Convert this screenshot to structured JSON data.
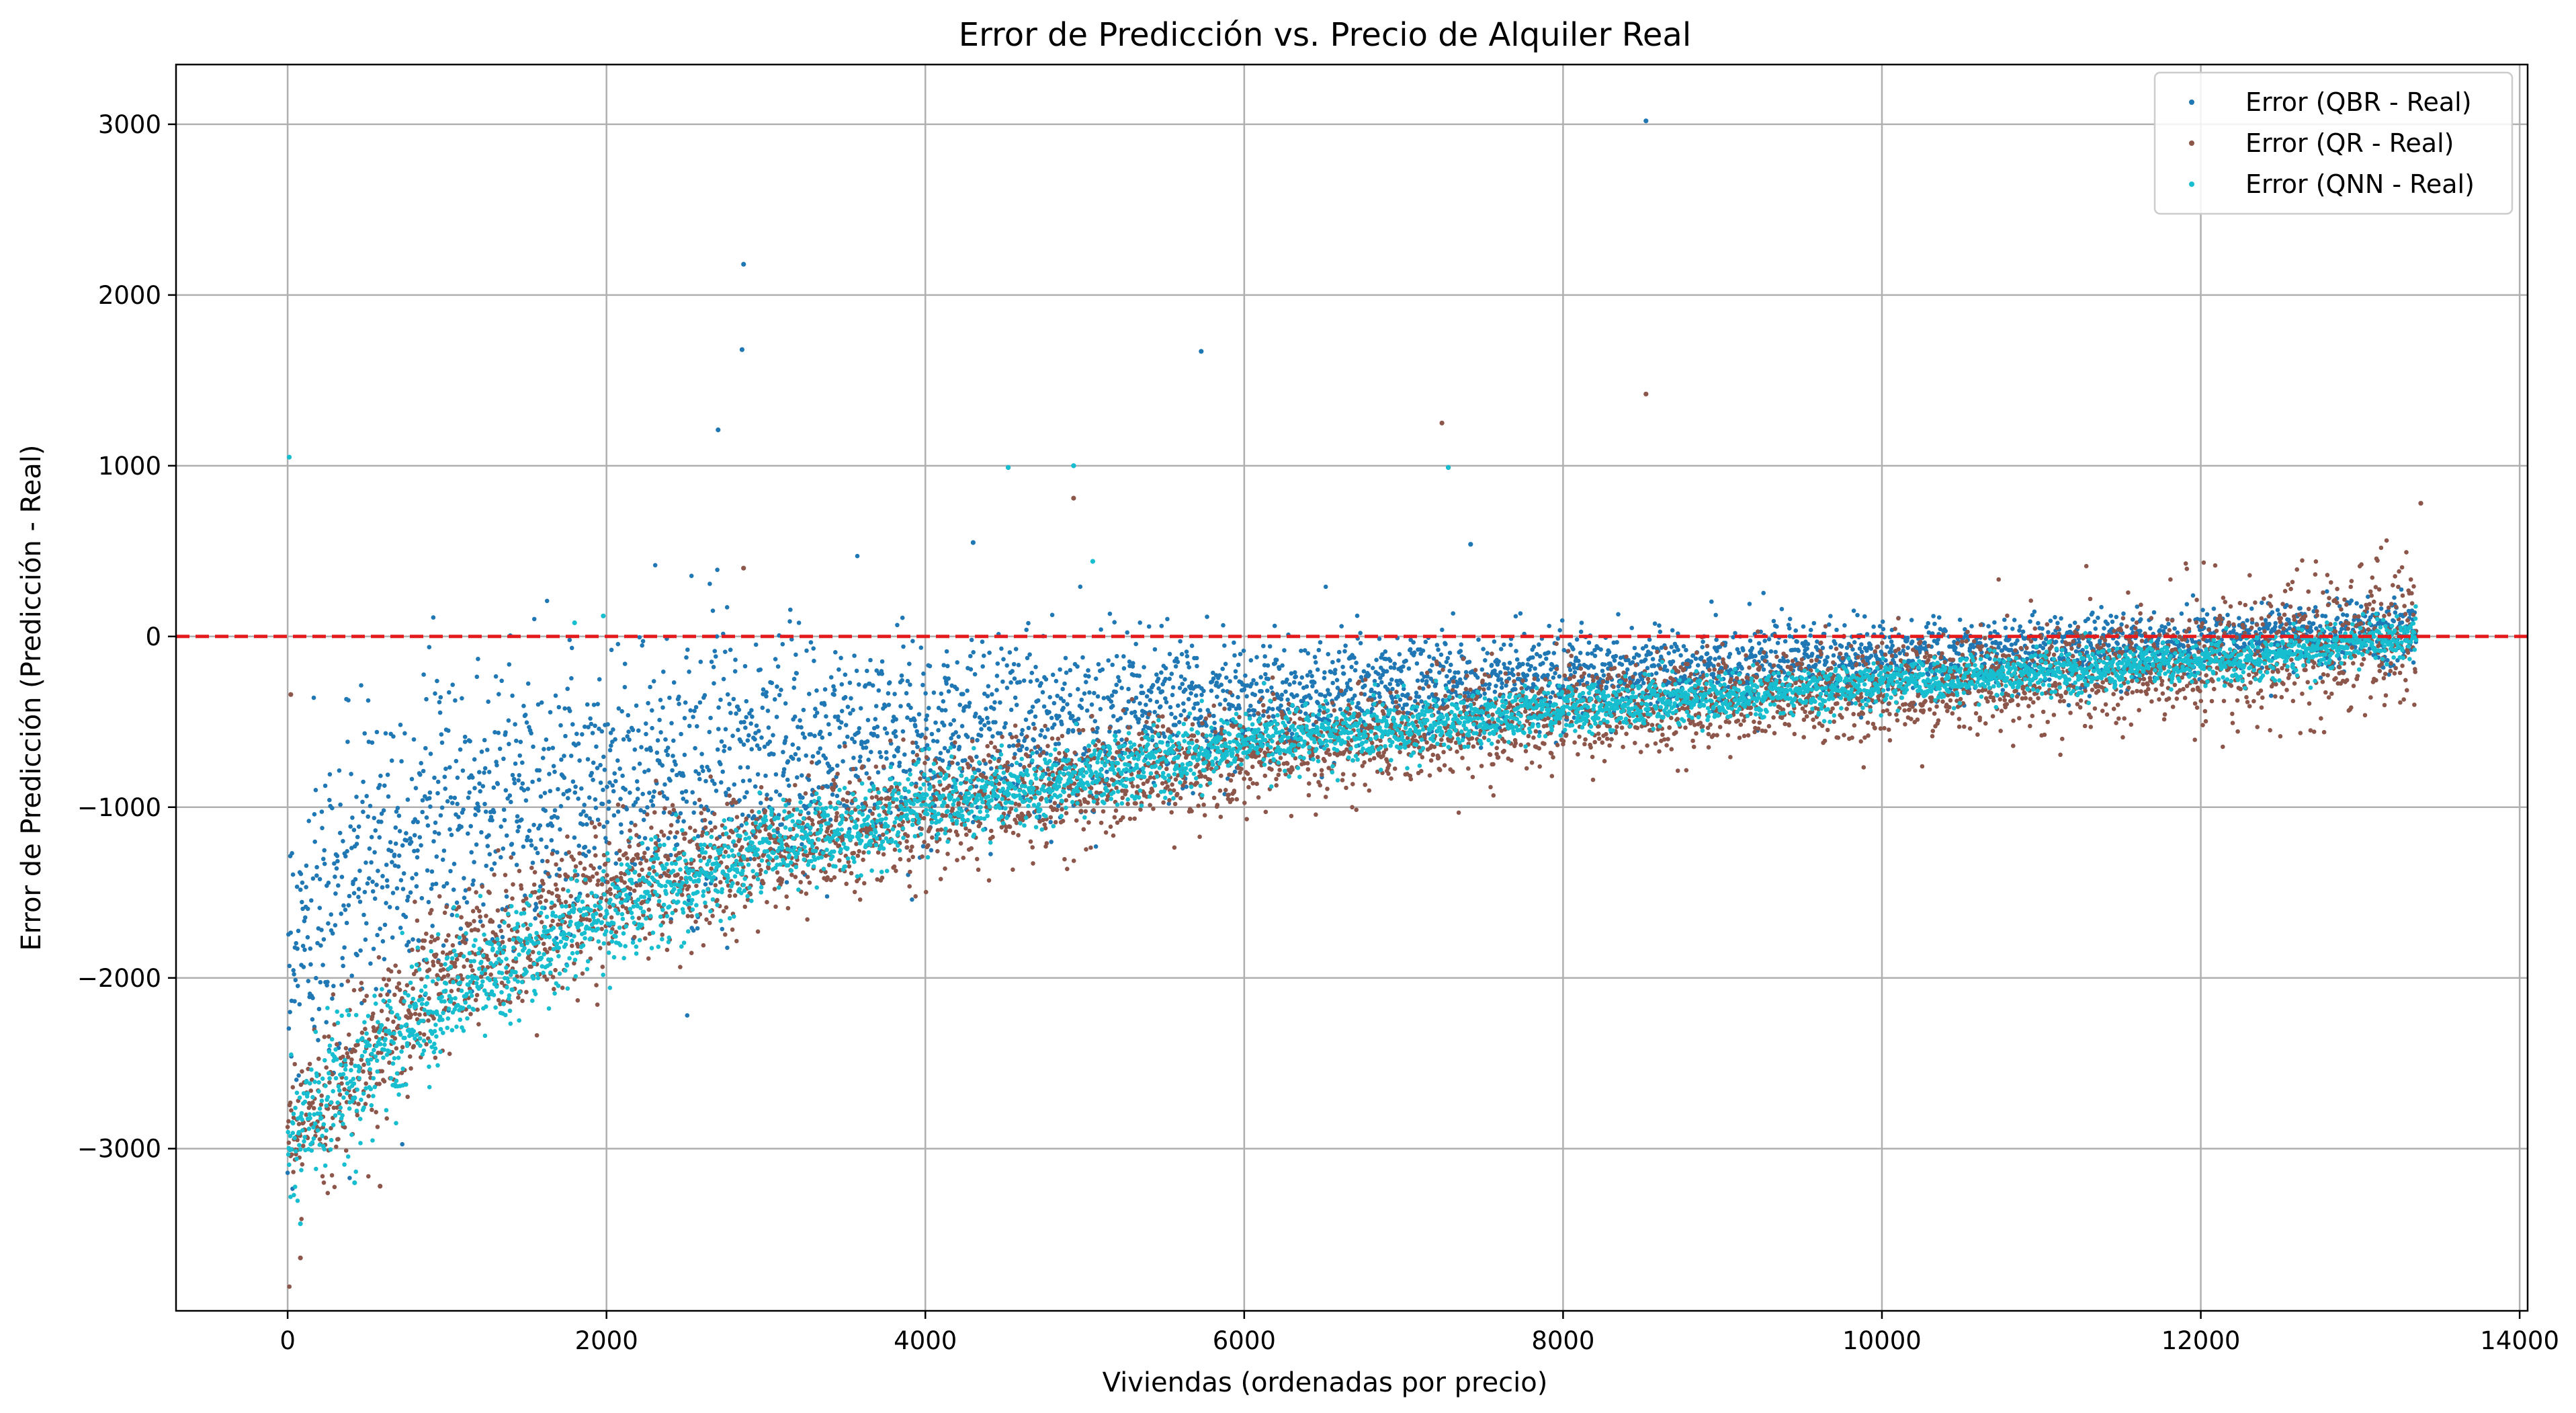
{
  "chart_data": {
    "type": "scatter",
    "title": "Error de Predicción vs. Precio de Alquiler Real",
    "xlabel": "Viviendas (ordenadas por precio)",
    "ylabel": "Error de Predicción (Predicción - Real)",
    "xlim": [
      -700,
      14050
    ],
    "ylim": [
      -3950,
      3350
    ],
    "xticks": [
      0,
      2000,
      4000,
      6000,
      8000,
      10000,
      12000,
      14000
    ],
    "xtick_labels": [
      "0",
      "2000",
      "4000",
      "6000",
      "8000",
      "10000",
      "12000",
      "14000"
    ],
    "yticks": [
      -3000,
      -2000,
      -1000,
      0,
      1000,
      2000,
      3000
    ],
    "ytick_labels": [
      "−3000",
      "−2000",
      "−1000",
      "0",
      "1000",
      "2000",
      "3000"
    ],
    "grid": true,
    "legend_position": "top-right",
    "reference_line": {
      "y": 0,
      "color": "#e41a1c",
      "style": "dashed"
    },
    "n_points": 13350,
    "series": [
      {
        "name": "Error (QBR - Real)",
        "color": "#1f77b4",
        "trend": [
          [
            0,
            -1900
          ],
          [
            500,
            -1250
          ],
          [
            1000,
            -1050
          ],
          [
            2000,
            -850
          ],
          [
            3000,
            -700
          ],
          [
            4000,
            -580
          ],
          [
            5000,
            -480
          ],
          [
            6000,
            -370
          ],
          [
            8000,
            -240
          ],
          [
            10000,
            -130
          ],
          [
            12000,
            -50
          ],
          [
            13350,
            40
          ]
        ],
        "spread": [
          [
            0,
            450
          ],
          [
            2000,
            400
          ],
          [
            4000,
            300
          ],
          [
            6000,
            180
          ],
          [
            8000,
            130
          ],
          [
            10000,
            110
          ],
          [
            13350,
            90
          ]
        ],
        "outliers": [
          [
            2860,
            2180
          ],
          [
            2850,
            1680
          ],
          [
            2700,
            1210
          ],
          [
            5730,
            1670
          ],
          [
            8520,
            3020
          ],
          [
            7280,
            990
          ],
          [
            4520,
            990
          ],
          [
            4930,
            1000
          ],
          [
            4300,
            550
          ],
          [
            7420,
            540
          ]
        ]
      },
      {
        "name": "Error (QR - Real)",
        "color": "#8c564b",
        "trend": [
          [
            0,
            -3000
          ],
          [
            500,
            -2400
          ],
          [
            1000,
            -2000
          ],
          [
            2000,
            -1500
          ],
          [
            3000,
            -1250
          ],
          [
            4000,
            -1000
          ],
          [
            5000,
            -850
          ],
          [
            6000,
            -680
          ],
          [
            8000,
            -450
          ],
          [
            10000,
            -300
          ],
          [
            12000,
            -150
          ],
          [
            13350,
            0
          ]
        ],
        "spread": [
          [
            0,
            250
          ],
          [
            2000,
            200
          ],
          [
            4000,
            170
          ],
          [
            6000,
            150
          ],
          [
            8000,
            140
          ],
          [
            10000,
            140
          ],
          [
            13350,
            200
          ]
        ],
        "outliers": [
          [
            20,
            -340
          ],
          [
            80,
            -3640
          ],
          [
            580,
            -3220
          ],
          [
            7240,
            1250
          ],
          [
            8520,
            1420
          ],
          [
            4930,
            810
          ],
          [
            2860,
            400
          ],
          [
            13380,
            780
          ]
        ]
      },
      {
        "name": "Error (QNN - Real)",
        "color": "#17becf",
        "trend": [
          [
            0,
            -2950
          ],
          [
            500,
            -2500
          ],
          [
            1000,
            -2100
          ],
          [
            2000,
            -1600
          ],
          [
            3000,
            -1250
          ],
          [
            4000,
            -1000
          ],
          [
            5000,
            -820
          ],
          [
            6000,
            -630
          ],
          [
            8000,
            -430
          ],
          [
            10000,
            -280
          ],
          [
            12000,
            -150
          ],
          [
            13350,
            0
          ]
        ],
        "spread": [
          [
            0,
            200
          ],
          [
            2000,
            150
          ],
          [
            4000,
            120
          ],
          [
            6000,
            90
          ],
          [
            8000,
            75
          ],
          [
            10000,
            65
          ],
          [
            13350,
            60
          ]
        ],
        "outliers": [
          [
            10,
            1050
          ],
          [
            4520,
            990
          ],
          [
            4930,
            1000
          ],
          [
            5050,
            440
          ],
          [
            7280,
            990
          ],
          [
            420,
            -3200
          ],
          [
            80,
            -3440
          ],
          [
            1980,
            120
          ],
          [
            1800,
            80
          ]
        ]
      }
    ]
  }
}
